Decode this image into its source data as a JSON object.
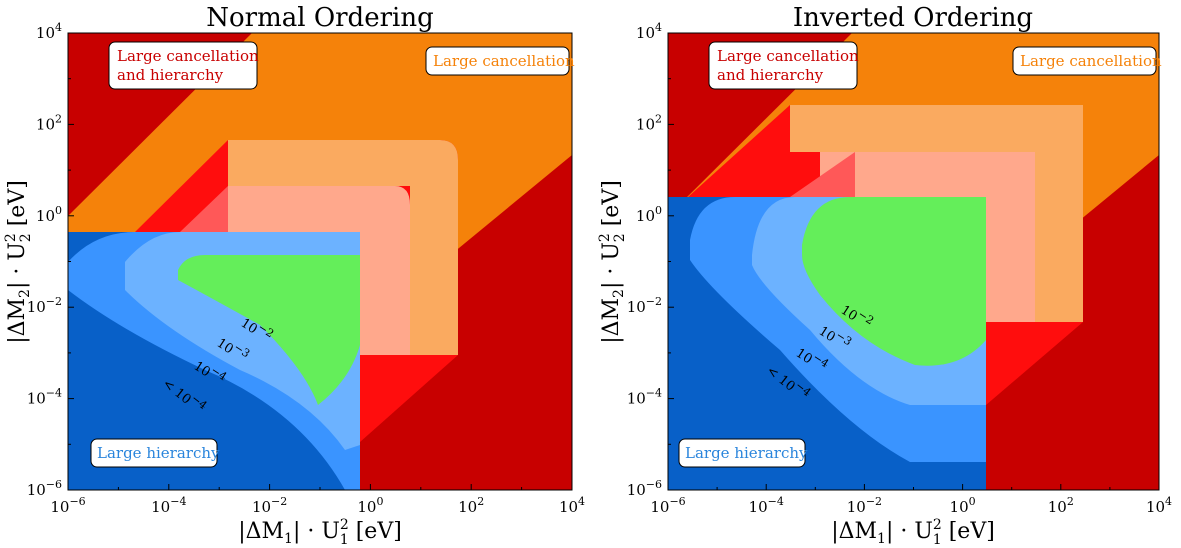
{
  "colors": {
    "large_cancellation_and_hierarchy": "#c80000",
    "large_cancellation": "#f5820a",
    "large_hierarchy": "#0860c8",
    "outer_red": "#ff0d0d",
    "outer_lightorange": "#faaa60",
    "level_1e-2": "#64ee5a",
    "level_1e-3": "#6cb2ff",
    "level_1e-4": "#3a94ff",
    "overlay_1e-3": "#ffa88c",
    "overlay_1e-4": "#ff5858"
  },
  "chart_data": [
    {
      "type": "contour",
      "title": "Normal Ordering",
      "xlabel": "|ΔM",
      "xlabel_sub": "1",
      "xlabel_tail": "| · U",
      "xlabel_tail_sup": "2",
      "xlabel_tail_sub": "1",
      "xlabel_unit": " [eV]",
      "ylabel": "|ΔM",
      "ylabel_sub": "2",
      "ylabel_tail": "| · U",
      "ylabel_tail_sup": "2",
      "ylabel_tail_sub": "2",
      "ylabel_unit": " [eV]",
      "x_scale": "log",
      "y_scale": "log",
      "xlim": [
        1e-06,
        10000.0
      ],
      "ylim": [
        1e-06,
        10000.0
      ],
      "x_ticks": [
        {
          "base": "10",
          "exp": "−6"
        },
        {
          "base": "10",
          "exp": "−4"
        },
        {
          "base": "10",
          "exp": "−2"
        },
        {
          "base": "10",
          "exp": "0"
        },
        {
          "base": "10",
          "exp": "2"
        },
        {
          "base": "10",
          "exp": "4"
        }
      ],
      "y_ticks": [
        {
          "base": "10",
          "exp": "−6"
        },
        {
          "base": "10",
          "exp": "−4"
        },
        {
          "base": "10",
          "exp": "−2"
        },
        {
          "base": "10",
          "exp": "0"
        },
        {
          "base": "10",
          "exp": "2"
        },
        {
          "base": "10",
          "exp": "4"
        }
      ],
      "boundaries": {
        "cancellation_band": {
          "lower_y_at_x_1e4": 200,
          "upper_y_at_x_1e-6": 1,
          "slope": 1
        },
        "hierarchy_cut": {
          "x_max": 0.5,
          "y_max": 0.45
        },
        "level_1e-2_extent": {
          "x": [
            0.0001,
            0.5
          ],
          "y": [
            0.0001,
            0.1
          ]
        },
        "level_1e-3_extent": {
          "x": [
            1e-05,
            5
          ],
          "y": [
            1e-05,
            3
          ]
        },
        "level_1e-4_extent": {
          "x": [
            1e-06,
            50
          ],
          "y": [
            1e-06,
            40
          ]
        }
      },
      "contour_labels": [
        {
          "text": "10",
          "exp": "−2"
        },
        {
          "text": "10",
          "exp": "−3"
        },
        {
          "text": "10",
          "exp": "−4"
        },
        {
          "text": "< 10",
          "exp": "−4"
        }
      ],
      "region_labels": {
        "cancellation_hierarchy": [
          "Large cancellation",
          "and hierarchy"
        ],
        "cancellation": "Large cancellation",
        "hierarchy": "Large hierarchy"
      }
    },
    {
      "type": "contour",
      "title": "Inverted Ordering",
      "xlabel": "|ΔM",
      "xlabel_sub": "1",
      "xlabel_tail": "| · U",
      "xlabel_tail_sup": "2",
      "xlabel_tail_sub": "1",
      "xlabel_unit": " [eV]",
      "ylabel": "|ΔM",
      "ylabel_sub": "2",
      "ylabel_tail": "| · U",
      "ylabel_tail_sup": "2",
      "ylabel_tail_sub": "2",
      "ylabel_unit": " [eV]",
      "x_scale": "log",
      "y_scale": "log",
      "xlim": [
        1e-06,
        10000.0
      ],
      "ylim": [
        1e-06,
        10000.0
      ],
      "x_ticks": [
        {
          "base": "10",
          "exp": "−6"
        },
        {
          "base": "10",
          "exp": "−4"
        },
        {
          "base": "10",
          "exp": "−2"
        },
        {
          "base": "10",
          "exp": "0"
        },
        {
          "base": "10",
          "exp": "2"
        },
        {
          "base": "10",
          "exp": "4"
        }
      ],
      "y_ticks": [
        {
          "base": "10",
          "exp": "−6"
        },
        {
          "base": "10",
          "exp": "−4"
        },
        {
          "base": "10",
          "exp": "−2"
        },
        {
          "base": "10",
          "exp": "0"
        },
        {
          "base": "10",
          "exp": "2"
        },
        {
          "base": "10",
          "exp": "4"
        }
      ],
      "boundaries": {
        "cancellation_band": {
          "lower_y_at_x_1e4": 200,
          "upper_y_at_x_1e-6": 1,
          "slope": 1
        },
        "hierarchy_cut": {
          "x_max": 2.5,
          "y_max": 2.5
        },
        "level_1e-2_extent": {
          "x": [
            0.001,
            2.5
          ],
          "y": [
            0.0005,
            2.5
          ]
        },
        "level_1e-3_extent": {
          "x": [
            5e-05,
            25
          ],
          "y": [
            5e-05,
            25
          ]
        },
        "level_1e-4_extent": {
          "x": [
            5e-06,
            250
          ],
          "y": [
            5e-06,
            250
          ]
        }
      },
      "contour_labels": [
        {
          "text": "10",
          "exp": "−2"
        },
        {
          "text": "10",
          "exp": "−3"
        },
        {
          "text": "10",
          "exp": "−4"
        },
        {
          "text": "< 10",
          "exp": "−4"
        }
      ],
      "region_labels": {
        "cancellation_hierarchy": [
          "Large cancellation",
          "and hierarchy"
        ],
        "cancellation": "Large cancellation",
        "hierarchy": "Large hierarchy"
      }
    }
  ]
}
